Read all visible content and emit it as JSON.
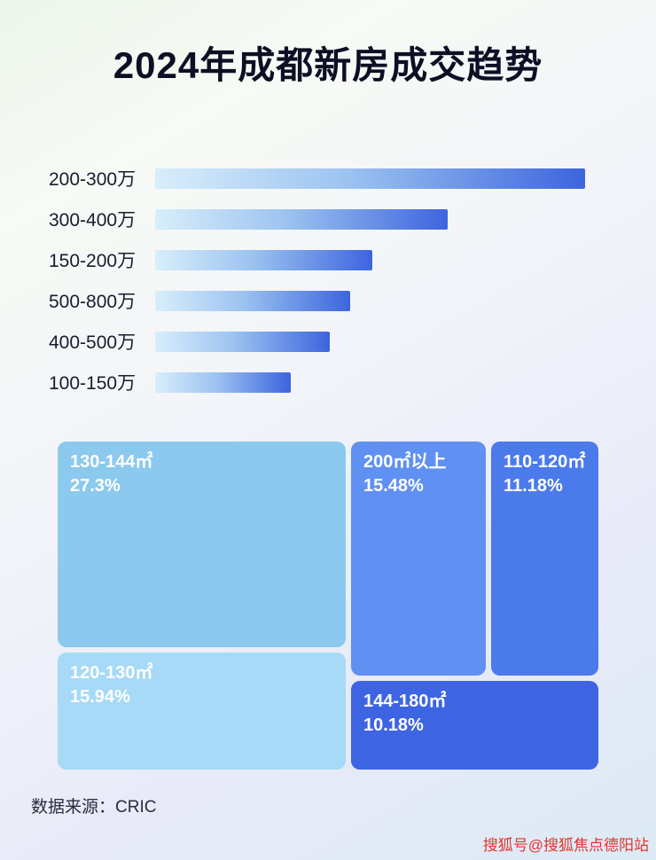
{
  "page": {
    "title": "2024年成都新房成交趋势",
    "source": "数据来源：CRIC",
    "watermark": "搜狐号@搜狐焦点德阳站"
  },
  "chart_data": [
    {
      "type": "bar",
      "orientation": "horizontal",
      "title": "",
      "categories": [
        "200-300万",
        "300-400万",
        "150-200万",
        "500-800万",
        "400-500万",
        "100-150万"
      ],
      "values": [
        100,
        68,
        50.5,
        45.3,
        40.6,
        31.5
      ],
      "value_unit": "relative bar length (% of longest bar; no numeric axis shown)",
      "xlabel": "",
      "ylabel": "",
      "grid": false,
      "legend": false,
      "bar_gradient": [
        "#d8eefb",
        "#3d64de"
      ]
    },
    {
      "type": "treemap",
      "title": "",
      "items": [
        {
          "label": "130-144㎡",
          "value_pct": 27.3,
          "display": "27.3%",
          "color": "#8cc9ee"
        },
        {
          "label": "120-130㎡",
          "value_pct": 15.94,
          "display": "15.94%",
          "color": "#a6daf6"
        },
        {
          "label": "200㎡以上",
          "value_pct": 15.48,
          "display": "15.48%",
          "color": "#6090f2"
        },
        {
          "label": "110-120㎡",
          "value_pct": 11.18,
          "display": "11.18%",
          "color": "#4b7aeb"
        },
        {
          "label": "144-180㎡",
          "value_pct": 10.18,
          "display": "10.18%",
          "color": "#3d64e2"
        }
      ]
    }
  ]
}
